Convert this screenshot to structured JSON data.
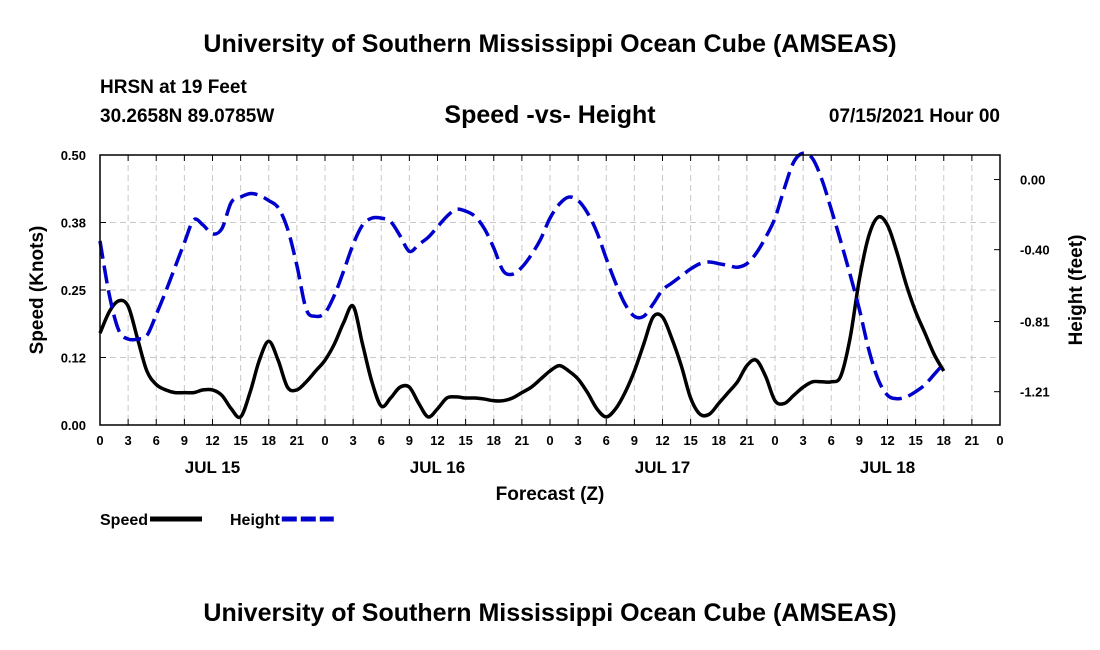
{
  "header": {
    "title": "University of Southern Mississippi Ocean Cube (AMSEAS)",
    "station": "HRSN at 19 Feet",
    "coords": "30.2658N  89.0785W",
    "datetime": "07/15/2021 Hour 00"
  },
  "footer": {
    "title": "University of Southern Mississippi Ocean Cube (AMSEAS)"
  },
  "chart_data": {
    "type": "line",
    "title": "Speed -vs- Height",
    "xlabel": "Forecast (Z)",
    "ylabel_left": "Speed (Knots)",
    "ylabel_right": "Height (feet)",
    "xlim_hours": [
      0,
      96
    ],
    "ylim_left": [
      0,
      0.5
    ],
    "ylim_right": [
      -1.4,
      0.14
    ],
    "grid": true,
    "x_tick_labels": [
      "0",
      "3",
      "6",
      "9",
      "12",
      "15",
      "18",
      "21",
      "0",
      "3",
      "6",
      "9",
      "12",
      "15",
      "18",
      "21",
      "0",
      "3",
      "6",
      "9",
      "12",
      "15",
      "18",
      "21",
      "0",
      "3",
      "6",
      "9",
      "12",
      "15",
      "18",
      "21",
      "0"
    ],
    "day_labels": [
      {
        "label": "JUL 15",
        "hour": 12
      },
      {
        "label": "JUL 16",
        "hour": 36
      },
      {
        "label": "JUL 17",
        "hour": 60
      },
      {
        "label": "JUL 18",
        "hour": 84
      }
    ],
    "left_tick_labels": [
      {
        "value": 0.0,
        "label": "0.00"
      },
      {
        "value": 0.125,
        "label": "0.12"
      },
      {
        "value": 0.25,
        "label": "0.25"
      },
      {
        "value": 0.375,
        "label": "0.38"
      },
      {
        "value": 0.5,
        "label": "0.50"
      }
    ],
    "right_tick_labels": [
      {
        "value": 0.0,
        "label": "0.00"
      },
      {
        "value": -0.4,
        "label": "-0.40"
      },
      {
        "value": -0.81,
        "label": "-0.81"
      },
      {
        "value": -1.21,
        "label": "-1.21"
      }
    ],
    "legend": [
      {
        "name": "Speed",
        "color": "#000000",
        "dash": "solid"
      },
      {
        "name": "Height",
        "color": "#0000cc",
        "dash": "dashed"
      }
    ],
    "series": [
      {
        "name": "Speed",
        "axis": "left",
        "color": "#000000",
        "points": [
          [
            0,
            0.17
          ],
          [
            1,
            0.21
          ],
          [
            2,
            0.23
          ],
          [
            3,
            0.22
          ],
          [
            4,
            0.16
          ],
          [
            5,
            0.1
          ],
          [
            6,
            0.075
          ],
          [
            7,
            0.065
          ],
          [
            8,
            0.06
          ],
          [
            9,
            0.06
          ],
          [
            10,
            0.06
          ],
          [
            11,
            0.065
          ],
          [
            12,
            0.065
          ],
          [
            13,
            0.055
          ],
          [
            14,
            0.03
          ],
          [
            15,
            0.015
          ],
          [
            16,
            0.06
          ],
          [
            17,
            0.12
          ],
          [
            18,
            0.155
          ],
          [
            19,
            0.12
          ],
          [
            20,
            0.07
          ],
          [
            21,
            0.065
          ],
          [
            22,
            0.08
          ],
          [
            23,
            0.1
          ],
          [
            24,
            0.12
          ],
          [
            25,
            0.15
          ],
          [
            26,
            0.19
          ],
          [
            27,
            0.22
          ],
          [
            28,
            0.15
          ],
          [
            29,
            0.08
          ],
          [
            30,
            0.035
          ],
          [
            31,
            0.05
          ],
          [
            32,
            0.07
          ],
          [
            33,
            0.07
          ],
          [
            34,
            0.04
          ],
          [
            35,
            0.015
          ],
          [
            36,
            0.03
          ],
          [
            37,
            0.05
          ],
          [
            38,
            0.052
          ],
          [
            39,
            0.05
          ],
          [
            40,
            0.05
          ],
          [
            41,
            0.048
          ],
          [
            42,
            0.045
          ],
          [
            43,
            0.045
          ],
          [
            44,
            0.05
          ],
          [
            45,
            0.06
          ],
          [
            46,
            0.07
          ],
          [
            47,
            0.085
          ],
          [
            48,
            0.1
          ],
          [
            49,
            0.11
          ],
          [
            50,
            0.1
          ],
          [
            51,
            0.085
          ],
          [
            52,
            0.06
          ],
          [
            53,
            0.03
          ],
          [
            54,
            0.015
          ],
          [
            55,
            0.03
          ],
          [
            56,
            0.06
          ],
          [
            57,
            0.1
          ],
          [
            58,
            0.15
          ],
          [
            59,
            0.2
          ],
          [
            60,
            0.2
          ],
          [
            61,
            0.16
          ],
          [
            62,
            0.11
          ],
          [
            63,
            0.05
          ],
          [
            64,
            0.02
          ],
          [
            65,
            0.02
          ],
          [
            66,
            0.04
          ],
          [
            67,
            0.06
          ],
          [
            68,
            0.08
          ],
          [
            69,
            0.11
          ],
          [
            70,
            0.12
          ],
          [
            71,
            0.09
          ],
          [
            72,
            0.045
          ],
          [
            73,
            0.04
          ],
          [
            74,
            0.055
          ],
          [
            75,
            0.07
          ],
          [
            76,
            0.08
          ],
          [
            77,
            0.08
          ],
          [
            78,
            0.08
          ],
          [
            79,
            0.09
          ],
          [
            80,
            0.16
          ],
          [
            81,
            0.27
          ],
          [
            82,
            0.35
          ],
          [
            83,
            0.385
          ],
          [
            84,
            0.37
          ],
          [
            85,
            0.32
          ],
          [
            86,
            0.26
          ],
          [
            87,
            0.21
          ],
          [
            88,
            0.17
          ],
          [
            89,
            0.13
          ],
          [
            90,
            0.1
          ]
        ]
      },
      {
        "name": "Height",
        "axis": "right",
        "color": "#0000cc",
        "points": [
          [
            0,
            -0.35
          ],
          [
            1,
            -0.66
          ],
          [
            2,
            -0.86
          ],
          [
            3,
            -0.91
          ],
          [
            4,
            -0.91
          ],
          [
            5,
            -0.89
          ],
          [
            6,
            -0.77
          ],
          [
            7,
            -0.64
          ],
          [
            8,
            -0.5
          ],
          [
            9,
            -0.36
          ],
          [
            10,
            -0.23
          ],
          [
            11,
            -0.26
          ],
          [
            12,
            -0.31
          ],
          [
            13,
            -0.28
          ],
          [
            14,
            -0.13
          ],
          [
            15,
            -0.1
          ],
          [
            16,
            -0.08
          ],
          [
            17,
            -0.09
          ],
          [
            18,
            -0.12
          ],
          [
            19,
            -0.16
          ],
          [
            20,
            -0.28
          ],
          [
            21,
            -0.49
          ],
          [
            22,
            -0.74
          ],
          [
            23,
            -0.78
          ],
          [
            24,
            -0.76
          ],
          [
            25,
            -0.66
          ],
          [
            26,
            -0.52
          ],
          [
            27,
            -0.37
          ],
          [
            28,
            -0.26
          ],
          [
            29,
            -0.22
          ],
          [
            30,
            -0.22
          ],
          [
            31,
            -0.24
          ],
          [
            32,
            -0.32
          ],
          [
            33,
            -0.41
          ],
          [
            34,
            -0.37
          ],
          [
            35,
            -0.33
          ],
          [
            36,
            -0.27
          ],
          [
            37,
            -0.21
          ],
          [
            38,
            -0.17
          ],
          [
            39,
            -0.18
          ],
          [
            40,
            -0.21
          ],
          [
            41,
            -0.28
          ],
          [
            42,
            -0.39
          ],
          [
            43,
            -0.52
          ],
          [
            44,
            -0.54
          ],
          [
            45,
            -0.5
          ],
          [
            46,
            -0.43
          ],
          [
            47,
            -0.34
          ],
          [
            48,
            -0.22
          ],
          [
            49,
            -0.14
          ],
          [
            50,
            -0.1
          ],
          [
            51,
            -0.12
          ],
          [
            52,
            -0.19
          ],
          [
            53,
            -0.3
          ],
          [
            54,
            -0.45
          ],
          [
            55,
            -0.59
          ],
          [
            56,
            -0.71
          ],
          [
            57,
            -0.78
          ],
          [
            58,
            -0.78
          ],
          [
            59,
            -0.71
          ],
          [
            60,
            -0.63
          ],
          [
            61,
            -0.59
          ],
          [
            62,
            -0.55
          ],
          [
            63,
            -0.51
          ],
          [
            64,
            -0.48
          ],
          [
            65,
            -0.47
          ],
          [
            66,
            -0.48
          ],
          [
            67,
            -0.49
          ],
          [
            68,
            -0.5
          ],
          [
            69,
            -0.48
          ],
          [
            70,
            -0.42
          ],
          [
            71,
            -0.33
          ],
          [
            72,
            -0.22
          ],
          [
            73,
            -0.05
          ],
          [
            74,
            0.1
          ],
          [
            75,
            0.15
          ],
          [
            76,
            0.12
          ],
          [
            77,
            0.0
          ],
          [
            78,
            -0.17
          ],
          [
            79,
            -0.35
          ],
          [
            80,
            -0.54
          ],
          [
            81,
            -0.74
          ],
          [
            82,
            -0.97
          ],
          [
            83,
            -1.14
          ],
          [
            84,
            -1.23
          ],
          [
            85,
            -1.25
          ],
          [
            86,
            -1.24
          ],
          [
            87,
            -1.21
          ],
          [
            88,
            -1.17
          ],
          [
            89,
            -1.11
          ],
          [
            90,
            -1.05
          ]
        ]
      }
    ]
  }
}
